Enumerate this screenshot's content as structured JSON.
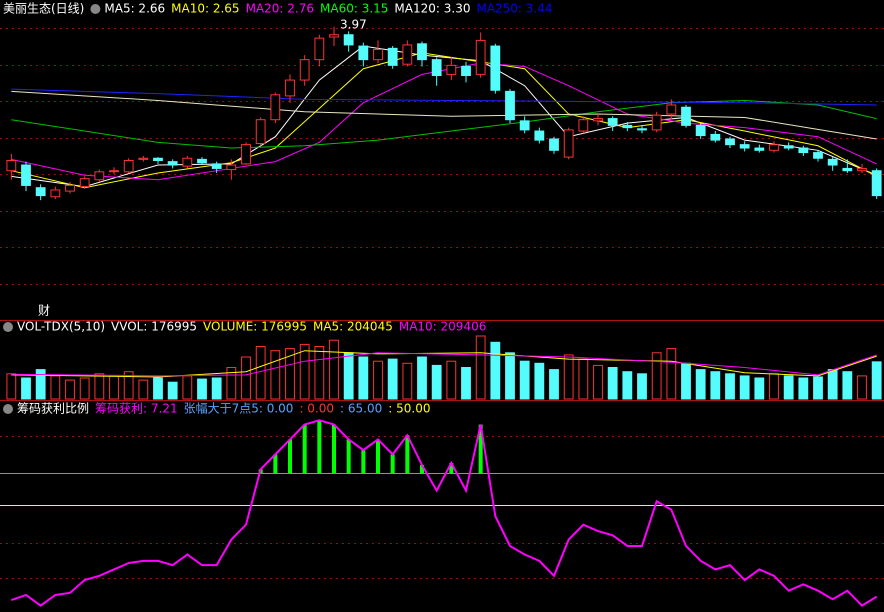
{
  "chart_data": [
    {
      "type": "candlestick",
      "title": "美丽生态(日线)",
      "legend": [
        {
          "text": "MA5: 2.66",
          "color": "#ffffff"
        },
        {
          "text": "MA10: 2.65",
          "color": "#ffff00"
        },
        {
          "text": "MA20: 2.76",
          "color": "#ff00ff"
        },
        {
          "text": "MA60: 3.15",
          "color": "#00ff00"
        },
        {
          "text": "MA120: 3.30",
          "color": "#ffffff"
        },
        {
          "text": "MA250: 3.44",
          "color": "#0000ff"
        }
      ],
      "open": [
        2.7,
        2.75,
        2.55,
        2.47,
        2.52,
        2.56,
        2.62,
        2.7,
        2.69,
        2.8,
        2.81,
        2.78,
        2.74,
        2.8,
        2.76,
        2.71,
        2.76,
        2.94,
        3.15,
        3.36,
        3.5,
        3.68,
        3.88,
        3.9,
        3.8,
        3.68,
        3.78,
        3.64,
        3.82,
        3.68,
        3.55,
        3.62,
        3.55,
        3.8,
        3.4,
        3.14,
        3.05,
        2.98,
        2.82,
        3.05,
        3.14,
        3.16,
        3.1,
        3.07,
        3.06,
        3.2,
        3.26,
        3.1,
        3.02,
        2.98,
        2.93,
        2.9,
        2.88,
        2.92,
        2.9,
        2.86,
        2.8,
        2.72,
        2.7,
        2.7
      ],
      "high": [
        2.85,
        2.78,
        2.58,
        2.56,
        2.6,
        2.65,
        2.71,
        2.73,
        2.81,
        2.83,
        2.82,
        2.8,
        2.83,
        2.82,
        2.78,
        2.8,
        2.95,
        3.17,
        3.39,
        3.55,
        3.72,
        3.9,
        3.97,
        3.93,
        3.83,
        3.85,
        3.8,
        3.85,
        3.84,
        3.7,
        3.7,
        3.66,
        3.92,
        3.82,
        3.42,
        3.18,
        3.08,
        3.0,
        3.08,
        3.18,
        3.2,
        3.18,
        3.13,
        3.1,
        3.22,
        3.33,
        3.28,
        3.12,
        3.05,
        3.0,
        2.96,
        2.93,
        2.96,
        2.95,
        2.92,
        2.88,
        2.82,
        2.8,
        2.76,
        2.72
      ],
      "low": [
        2.62,
        2.52,
        2.44,
        2.45,
        2.5,
        2.54,
        2.6,
        2.67,
        2.68,
        2.78,
        2.76,
        2.72,
        2.72,
        2.75,
        2.68,
        2.62,
        2.75,
        2.92,
        3.12,
        3.3,
        3.45,
        3.62,
        3.8,
        3.75,
        3.62,
        3.65,
        3.6,
        3.62,
        3.62,
        3.45,
        3.5,
        3.48,
        3.52,
        3.38,
        3.12,
        3.03,
        2.94,
        2.85,
        2.8,
        3.03,
        3.1,
        3.05,
        3.05,
        3.03,
        3.04,
        3.15,
        3.08,
        2.98,
        2.95,
        2.9,
        2.87,
        2.86,
        2.86,
        2.88,
        2.83,
        2.78,
        2.7,
        2.68,
        2.68,
        2.45
      ],
      "close": [
        2.79,
        2.57,
        2.48,
        2.53,
        2.57,
        2.63,
        2.69,
        2.7,
        2.79,
        2.81,
        2.79,
        2.75,
        2.81,
        2.77,
        2.72,
        2.75,
        2.93,
        3.15,
        3.37,
        3.5,
        3.68,
        3.87,
        3.9,
        3.81,
        3.68,
        3.77,
        3.63,
        3.81,
        3.68,
        3.54,
        3.63,
        3.54,
        3.85,
        3.41,
        3.15,
        3.06,
        2.97,
        2.88,
        3.06,
        3.15,
        3.16,
        3.1,
        3.08,
        3.06,
        3.19,
        3.28,
        3.1,
        3.01,
        2.97,
        2.93,
        2.9,
        2.88,
        2.93,
        2.9,
        2.86,
        2.81,
        2.75,
        2.7,
        2.72,
        2.48
      ],
      "up_color": "#ff3232",
      "down_color": "#54fcfc",
      "ylim": [
        1.4,
        4.03
      ],
      "lines": [
        {
          "color": "#ffffff",
          "x": [
            0,
            5,
            10,
            15,
            18,
            21,
            24,
            28,
            32,
            35,
            38,
            42,
            46,
            50,
            55,
            59
          ],
          "values": [
            2.65,
            2.56,
            2.75,
            2.76,
            3.0,
            3.5,
            3.8,
            3.72,
            3.67,
            3.45,
            3.0,
            3.12,
            3.17,
            2.97,
            2.88,
            2.66
          ]
        },
        {
          "color": "#ffff00",
          "x": [
            0,
            5,
            10,
            15,
            18,
            21,
            24,
            28,
            32,
            35,
            38,
            42,
            46,
            50,
            55,
            59
          ],
          "values": [
            2.7,
            2.55,
            2.68,
            2.77,
            2.9,
            3.25,
            3.6,
            3.74,
            3.66,
            3.6,
            3.2,
            3.08,
            3.15,
            3.05,
            2.92,
            2.65
          ]
        },
        {
          "color": "#ff00ff",
          "x": [
            0,
            5,
            10,
            15,
            18,
            21,
            24,
            28,
            32,
            35,
            38,
            42,
            46,
            50,
            55,
            59
          ],
          "values": [
            2.8,
            2.66,
            2.62,
            2.72,
            2.78,
            2.95,
            3.3,
            3.55,
            3.65,
            3.62,
            3.45,
            3.2,
            3.12,
            3.08,
            3.0,
            2.76
          ]
        },
        {
          "color": "#00c000",
          "x": [
            0,
            5,
            10,
            15,
            20,
            25,
            30,
            35,
            40,
            45,
            50,
            55,
            59
          ],
          "values": [
            3.15,
            3.05,
            2.95,
            2.9,
            2.92,
            2.97,
            3.05,
            3.13,
            3.22,
            3.3,
            3.32,
            3.28,
            3.16
          ]
        },
        {
          "color": "#e8e8c0",
          "x": [
            0,
            10,
            20,
            30,
            40,
            50,
            59
          ],
          "values": [
            3.4,
            3.32,
            3.22,
            3.18,
            3.2,
            3.17,
            2.98
          ]
        },
        {
          "color": "#2020ff",
          "x": [
            0,
            10,
            20,
            30,
            40,
            50,
            59
          ],
          "values": [
            3.42,
            3.38,
            3.33,
            3.32,
            3.31,
            3.3,
            3.28
          ]
        }
      ],
      "high_label": {
        "index": 22,
        "value": 3.97
      },
      "marker": "财"
    },
    {
      "type": "bar",
      "title": "VOL-TDX(5,10)",
      "legend": [
        {
          "text": "VVOL: 176995",
          "color": "#ffffff"
        },
        {
          "text": "VOLUME: 176995",
          "color": "#ffff00"
        },
        {
          "text": "MA5: 204045",
          "color": "#ffff00"
        },
        {
          "text": "MA10: 209406",
          "color": "#ff00ff"
        }
      ],
      "values": [
        120000,
        100000,
        140000,
        110000,
        90000,
        100000,
        120000,
        110000,
        130000,
        90000,
        100000,
        80000,
        110000,
        95000,
        100000,
        150000,
        200000,
        250000,
        230000,
        240000,
        260000,
        250000,
        280000,
        220000,
        200000,
        180000,
        190000,
        170000,
        200000,
        160000,
        180000,
        150000,
        300000,
        270000,
        220000,
        180000,
        170000,
        140000,
        210000,
        190000,
        160000,
        150000,
        130000,
        120000,
        220000,
        240000,
        170000,
        140000,
        130000,
        120000,
        110000,
        100000,
        120000,
        110000,
        100000,
        105000,
        140000,
        130000,
        110000,
        176995
      ],
      "ylim": [
        0,
        300000
      ],
      "lines": [
        {
          "color": "#ffff00",
          "x": [
            0,
            10,
            16,
            20,
            25,
            32,
            38,
            45,
            50,
            55,
            59
          ],
          "values": [
            115000,
            105000,
            130000,
            230000,
            215000,
            220000,
            190000,
            180000,
            125000,
            110000,
            204045
          ]
        },
        {
          "color": "#ff00ff",
          "x": [
            0,
            10,
            16,
            20,
            25,
            32,
            38,
            45,
            50,
            55,
            59
          ],
          "values": [
            118000,
            110000,
            115000,
            180000,
            220000,
            210000,
            200000,
            175000,
            150000,
            115000,
            209406
          ]
        }
      ]
    },
    {
      "type": "line",
      "title": "筹码获利比例",
      "legend": [
        {
          "text": "筹码获利: 7.21",
          "color": "#ff00ff"
        },
        {
          "text": "张幅大于7点5: 0.00",
          "color": "#5aa0ff"
        },
        {
          "text": ": 0.00",
          "color": "#ff3232"
        },
        {
          "text": ": 65.00",
          "color": "#5aa0ff"
        },
        {
          "text": ": 50.00",
          "color": "#ffff00"
        }
      ],
      "values": [
        5.6,
        8,
        3,
        8,
        9,
        15,
        17,
        20,
        23,
        24,
        24,
        22,
        27,
        22,
        22,
        34,
        41,
        67,
        74,
        81,
        88,
        90,
        88,
        81,
        76,
        81,
        74,
        83,
        69,
        57,
        70,
        57,
        88,
        45,
        31,
        27,
        24,
        17,
        34,
        41,
        38,
        36,
        31,
        31,
        52,
        48,
        31,
        24,
        20,
        22,
        15,
        20,
        17,
        10,
        13,
        10,
        6,
        10,
        3,
        7.21
      ],
      "color": "#ff00ff",
      "fill_color": "#00ff00",
      "ylim": [
        0,
        100
      ],
      "hlines": [
        {
          "value": 65,
          "color": "#20c0c0"
        },
        {
          "value": 50,
          "color": "#ffff00"
        }
      ]
    }
  ]
}
